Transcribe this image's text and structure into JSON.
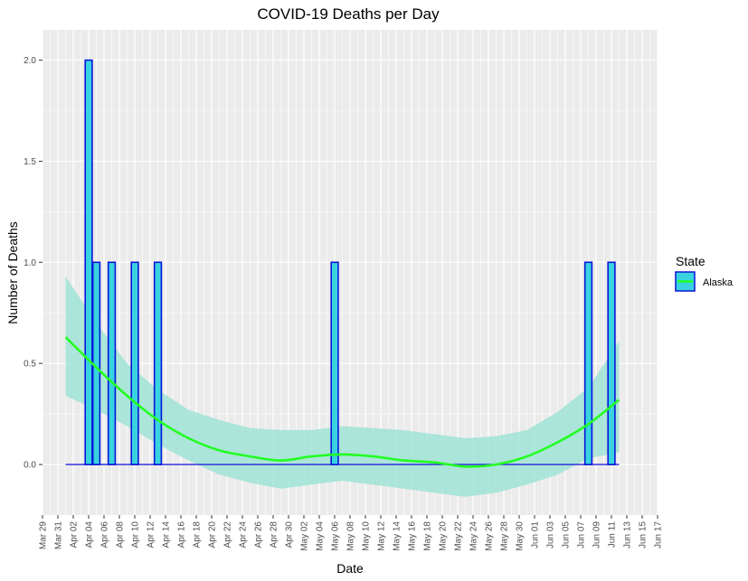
{
  "chart_data": {
    "type": "bar",
    "title": "COVID-19 Deaths per Day",
    "xlabel": "Date",
    "ylabel": "Number of Deaths",
    "x_range": [
      "2020-03-29",
      "2020-06-17"
    ],
    "ylim": [
      -0.25,
      2.15
    ],
    "x_tick_dates": [
      "2020-03-29",
      "2020-03-31",
      "2020-04-02",
      "2020-04-04",
      "2020-04-06",
      "2020-04-08",
      "2020-04-10",
      "2020-04-12",
      "2020-04-14",
      "2020-04-16",
      "2020-04-18",
      "2020-04-20",
      "2020-04-22",
      "2020-04-24",
      "2020-04-26",
      "2020-04-28",
      "2020-04-30",
      "2020-05-02",
      "2020-05-04",
      "2020-05-06",
      "2020-05-08",
      "2020-05-10",
      "2020-05-12",
      "2020-05-14",
      "2020-05-16",
      "2020-05-18",
      "2020-05-20",
      "2020-05-22",
      "2020-05-24",
      "2020-05-26",
      "2020-05-28",
      "2020-05-30",
      "2020-06-01",
      "2020-06-03",
      "2020-06-05",
      "2020-06-07",
      "2020-06-09",
      "2020-06-11",
      "2020-06-13",
      "2020-06-15",
      "2020-06-17"
    ],
    "x_tick_labels": [
      "Mar 29",
      "Mar 31",
      "Apr 02",
      "Apr 04",
      "Apr 06",
      "Apr 08",
      "Apr 10",
      "Apr 12",
      "Apr 14",
      "Apr 16",
      "Apr 18",
      "Apr 20",
      "Apr 22",
      "Apr 24",
      "Apr 26",
      "Apr 28",
      "Apr 30",
      "May 02",
      "May 04",
      "May 06",
      "May 08",
      "May 10",
      "May 12",
      "May 14",
      "May 16",
      "May 18",
      "May 20",
      "May 22",
      "May 24",
      "May 26",
      "May 28",
      "May 30",
      "Jun 01",
      "Jun 03",
      "Jun 05",
      "Jun 07",
      "Jun 09",
      "Jun 11",
      "Jun 13",
      "Jun 15",
      "Jun 17"
    ],
    "y_ticks": [
      0.0,
      0.5,
      1.0,
      1.5,
      2.0
    ],
    "y_tick_labels": [
      "0.0",
      "0.5",
      "1.0",
      "1.5",
      "2.0"
    ],
    "grid": true,
    "baseline": {
      "x_start": "2020-04-01",
      "x_end": "2020-06-12",
      "y": 0
    },
    "bars": [
      {
        "x": "2020-04-04",
        "y": 2
      },
      {
        "x": "2020-04-05",
        "y": 1
      },
      {
        "x": "2020-04-07",
        "y": 1
      },
      {
        "x": "2020-04-10",
        "y": 1
      },
      {
        "x": "2020-04-13",
        "y": 1
      },
      {
        "x": "2020-05-06",
        "y": 1
      },
      {
        "x": "2020-06-08",
        "y": 1
      },
      {
        "x": "2020-06-11",
        "y": 1
      }
    ],
    "smooth": {
      "dates": [
        "2020-04-01",
        "2020-04-05",
        "2020-04-09",
        "2020-04-13",
        "2020-04-17",
        "2020-04-21",
        "2020-04-25",
        "2020-04-29",
        "2020-05-03",
        "2020-05-07",
        "2020-05-11",
        "2020-05-15",
        "2020-05-19",
        "2020-05-23",
        "2020-05-27",
        "2020-05-31",
        "2020-06-04",
        "2020-06-08",
        "2020-06-12"
      ],
      "fit": [
        0.63,
        0.48,
        0.34,
        0.22,
        0.13,
        0.07,
        0.04,
        0.02,
        0.04,
        0.05,
        0.04,
        0.02,
        0.01,
        -0.01,
        0.0,
        0.04,
        0.11,
        0.2,
        0.32
      ],
      "lower": [
        0.34,
        0.27,
        0.19,
        0.1,
        0.02,
        -0.05,
        -0.09,
        -0.12,
        -0.1,
        -0.08,
        -0.1,
        -0.12,
        -0.14,
        -0.16,
        -0.14,
        -0.1,
        -0.05,
        0.03,
        0.06
      ],
      "upper": [
        0.93,
        0.7,
        0.5,
        0.37,
        0.27,
        0.22,
        0.18,
        0.17,
        0.17,
        0.19,
        0.18,
        0.17,
        0.15,
        0.13,
        0.14,
        0.17,
        0.26,
        0.38,
        0.61
      ]
    },
    "legend": {
      "title": "State",
      "entries": [
        "Alaska"
      ],
      "position": "right"
    },
    "colors": {
      "panel": "#ebebeb",
      "grid": "#ffffff",
      "bar_fill": "#39d3e0",
      "bar_stroke": "#0a14d8",
      "smooth_line": "#22ff22",
      "ribbon": "#a0e3d6",
      "baseline": "#2222dd"
    }
  }
}
